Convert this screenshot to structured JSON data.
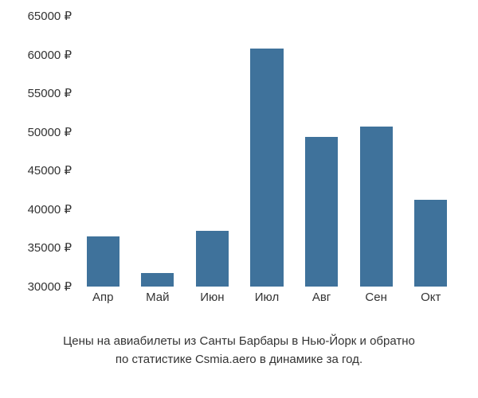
{
  "chart": {
    "type": "bar",
    "categories": [
      "Апр",
      "Май",
      "Июн",
      "Июл",
      "Авг",
      "Сен",
      "Окт"
    ],
    "values": [
      36500,
      31800,
      37200,
      60800,
      49400,
      50700,
      41200
    ],
    "bar_color": "#3f729b",
    "ylim": [
      30000,
      65000
    ],
    "ytick_step": 5000,
    "yticks": [
      "30000 ₽",
      "35000 ₽",
      "40000 ₽",
      "45000 ₽",
      "50000 ₽",
      "55000 ₽",
      "60000 ₽",
      "65000 ₽"
    ],
    "ytick_values": [
      30000,
      35000,
      40000,
      45000,
      50000,
      55000,
      60000,
      65000
    ],
    "background_color": "#ffffff",
    "bar_width_ratio": 0.6,
    "label_fontsize": 15,
    "label_color": "#333333"
  },
  "caption": {
    "line1": "Цены на авиабилеты из Санты Барбары в Нью-Йорк и обратно",
    "line2": "по статистике Csmia.aero в динамике за год."
  }
}
